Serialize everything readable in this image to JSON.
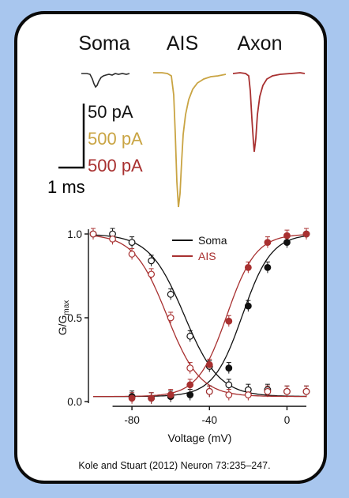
{
  "traces": {
    "labels": [
      "Soma",
      "AIS",
      "Axon"
    ],
    "colors": [
      "#2b2b2b",
      "#c9a443",
      "#a83030"
    ],
    "scale_current": [
      "50 pA",
      "500 pA",
      "500 pA"
    ],
    "scale_time": "1 ms"
  },
  "chart_data": {
    "type": "scatter",
    "title": "",
    "xlabel": "Voltage (mV)",
    "ylabel": "G/G",
    "ylabel_sub": "max",
    "xlim": [
      -100,
      10
    ],
    "ylim": [
      0,
      1.0
    ],
    "xticks": [
      -80,
      -40,
      0
    ],
    "yticks": [
      0.0,
      0.5,
      1.0
    ],
    "xtick_labels": [
      "-80",
      "-40",
      "0"
    ],
    "ytick_labels": [
      "0.0",
      "0.5",
      "1.0"
    ],
    "legend": {
      "position": "top-right",
      "entries": [
        "Soma",
        "AIS"
      ]
    },
    "series": [
      {
        "name": "Soma",
        "color": "#111111",
        "kind": "inactivation",
        "marker": "open",
        "x": [
          -100,
          -90,
          -80,
          -70,
          -60,
          -50,
          -40,
          -30,
          -20,
          -10,
          0,
          10
        ],
        "y": [
          1.0,
          1.0,
          0.95,
          0.84,
          0.64,
          0.39,
          0.21,
          0.1,
          0.07,
          0.07,
          0.06,
          0.06
        ]
      },
      {
        "name": "Soma",
        "color": "#111111",
        "kind": "activation",
        "marker": "filled",
        "x": [
          -80,
          -70,
          -60,
          -50,
          -40,
          -30,
          -20,
          -10,
          0,
          10
        ],
        "y": [
          0.03,
          0.02,
          0.03,
          0.04,
          0.06,
          0.2,
          0.57,
          0.8,
          0.95,
          1.0
        ]
      },
      {
        "name": "AIS",
        "color": "#a83030",
        "kind": "inactivation",
        "marker": "open",
        "x": [
          -100,
          -90,
          -80,
          -70,
          -60,
          -50,
          -40,
          -30,
          -20,
          -10,
          0,
          10
        ],
        "y": [
          1.0,
          0.97,
          0.88,
          0.76,
          0.5,
          0.2,
          0.06,
          0.04,
          0.04,
          0.06,
          0.06,
          0.06
        ]
      },
      {
        "name": "AIS",
        "color": "#a83030",
        "kind": "activation",
        "marker": "filled",
        "x": [
          -80,
          -70,
          -60,
          -50,
          -40,
          -30,
          -20,
          -10,
          0,
          10
        ],
        "y": [
          0.02,
          0.02,
          0.04,
          0.1,
          0.22,
          0.48,
          0.8,
          0.95,
          0.99,
          1.0
        ]
      }
    ]
  },
  "citation": "Kole and Stuart (2012) Neuron 73:235–247."
}
